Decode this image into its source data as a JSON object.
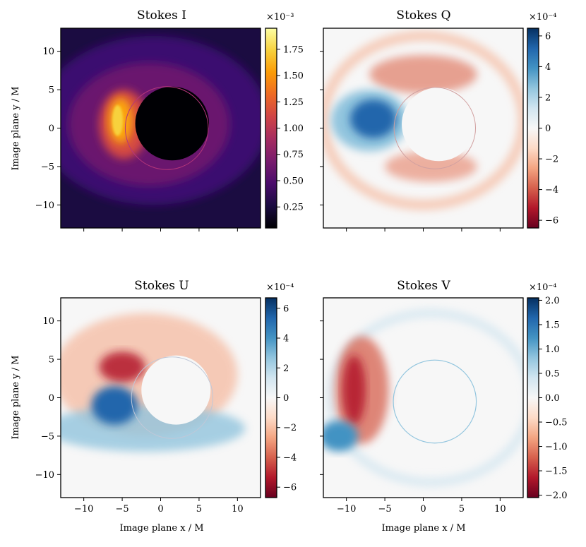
{
  "chart_data": {
    "type": "heatmap",
    "xlabel": "Image plane x / M",
    "ylabel": "Image plane y / M",
    "x_range": [
      -13,
      13
    ],
    "y_range": [
      -13,
      13
    ],
    "x_ticks": [
      -10,
      -5,
      0,
      5,
      10
    ],
    "y_ticks": [
      -10,
      -5,
      0,
      5,
      10
    ],
    "x_tick_labels": [
      "−10",
      "−5",
      "0",
      "5",
      "10"
    ],
    "y_tick_labels": [
      "−10",
      "−5",
      "0",
      "5",
      "10"
    ],
    "panels": [
      {
        "key": "I",
        "title": "Stokes I",
        "colormap": "inferno",
        "colormap_colors": [
          "#000004",
          "#1b0c41",
          "#4a0c6b",
          "#781c6d",
          "#a52c60",
          "#cf4446",
          "#ed6925",
          "#fb9b06",
          "#f7d13d",
          "#fcffa4"
        ],
        "vmin": 0.05,
        "vmax": 1.95,
        "ticks": [
          0.25,
          0.5,
          0.75,
          1.0,
          1.25,
          1.5,
          1.75
        ],
        "tick_labels": [
          "0.25",
          "0.50",
          "0.75",
          "1.00",
          "1.25",
          "1.50",
          "1.75"
        ],
        "multiplier": "×10⁻³"
      },
      {
        "key": "Q",
        "title": "Stokes Q",
        "colormap": "RdBu",
        "colormap_colors": [
          "#67001f",
          "#b2182b",
          "#d6604d",
          "#f4a582",
          "#fddbc7",
          "#f7f7f7",
          "#d1e5f0",
          "#92c5de",
          "#4393c3",
          "#2166ac",
          "#053061"
        ],
        "vmin": -6.5,
        "vmax": 6.5,
        "ticks": [
          -6,
          -4,
          -2,
          0,
          2,
          4,
          6
        ],
        "tick_labels": [
          "−6",
          "−4",
          "−2",
          "0",
          "2",
          "4",
          "6"
        ],
        "multiplier": "×10⁻⁴"
      },
      {
        "key": "U",
        "title": "Stokes U",
        "colormap": "RdBu",
        "colormap_colors": [
          "#67001f",
          "#b2182b",
          "#d6604d",
          "#f4a582",
          "#fddbc7",
          "#f7f7f7",
          "#d1e5f0",
          "#92c5de",
          "#4393c3",
          "#2166ac",
          "#053061"
        ],
        "vmin": -6.7,
        "vmax": 6.7,
        "ticks": [
          -6,
          -4,
          -2,
          0,
          2,
          4,
          6
        ],
        "tick_labels": [
          "−6",
          "−4",
          "−2",
          "0",
          "2",
          "4",
          "6"
        ],
        "multiplier": "×10⁻⁴"
      },
      {
        "key": "V",
        "title": "Stokes V",
        "colormap": "RdBu",
        "colormap_colors": [
          "#67001f",
          "#b2182b",
          "#d6604d",
          "#f4a582",
          "#fddbc7",
          "#f7f7f7",
          "#d1e5f0",
          "#92c5de",
          "#4393c3",
          "#2166ac",
          "#053061"
        ],
        "vmin": -2.05,
        "vmax": 2.05,
        "ticks": [
          -2.0,
          -1.5,
          -1.0,
          -0.5,
          0.0,
          0.5,
          1.0,
          1.5,
          2.0
        ],
        "tick_labels": [
          "−2.0",
          "−1.5",
          "−1.0",
          "−0.5",
          "0.0",
          "0.5",
          "1.0",
          "1.5",
          "2.0"
        ],
        "multiplier": "×10⁻⁴"
      }
    ]
  }
}
